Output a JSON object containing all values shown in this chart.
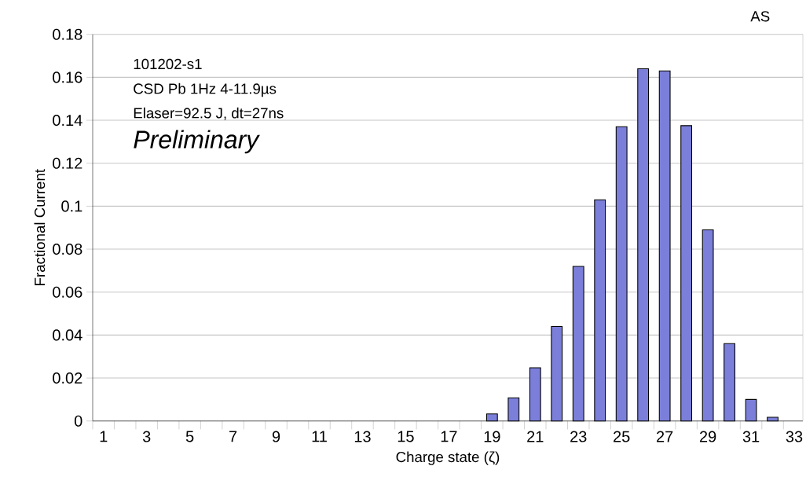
{
  "chart_data": {
    "type": "bar",
    "xlabel": "Charge state (ζ)",
    "ylabel": "Fractional Current",
    "annotations": [
      "101202-s1",
      "CSD Pb 1Hz 4-11.9µs",
      "Elaser=92.5 J, dt=27ns",
      "Preliminary",
      "AS"
    ],
    "categories": [
      "1",
      null,
      "3",
      null,
      "5",
      null,
      "7",
      null,
      "9",
      null,
      "11",
      null,
      "13",
      null,
      "15",
      null,
      "17",
      null,
      "19",
      null,
      "21",
      null,
      "23",
      null,
      "25",
      null,
      "27",
      null,
      "29",
      null,
      "31",
      null,
      "33"
    ],
    "values": [
      null,
      null,
      null,
      null,
      null,
      null,
      null,
      null,
      null,
      null,
      null,
      null,
      null,
      null,
      null,
      null,
      null,
      null,
      0.0033,
      0.0108,
      0.0248,
      0.044,
      0.072,
      0.103,
      0.137,
      0.164,
      0.163,
      0.1375,
      0.089,
      0.036,
      0.01,
      0.0017,
      null
    ],
    "color": "#7b7fd9",
    "ylim": [
      0,
      0.18
    ],
    "yticks": [
      0,
      0.02,
      0.04,
      0.06,
      0.08,
      0.1,
      0.12,
      0.14,
      0.16,
      0.18
    ],
    "grid": "y"
  }
}
